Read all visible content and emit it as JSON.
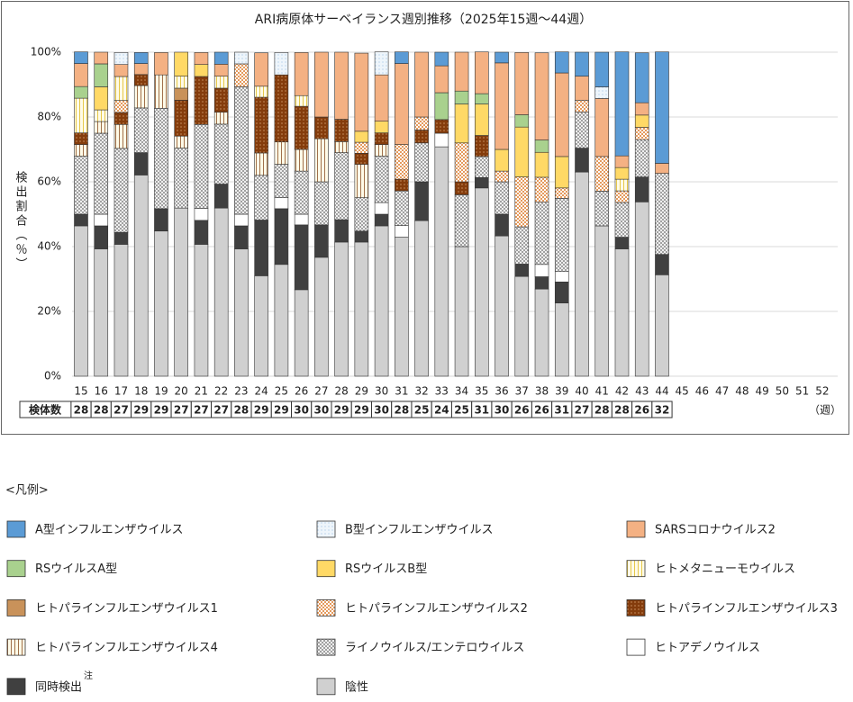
{
  "chart_data": {
    "type": "stacked_bar",
    "title": "ARI病原体サーベイランス週別推移（2025年15週～44週）",
    "y_label": "検出割合（％）",
    "x_unit": "（週）",
    "legend_title": "<凡例>",
    "note_mark": "注",
    "sample_count_label": "検体数",
    "categories": [
      "15",
      "16",
      "17",
      "18",
      "19",
      "20",
      "21",
      "22",
      "23",
      "24",
      "25",
      "26",
      "27",
      "28",
      "29",
      "30",
      "31",
      "32",
      "33",
      "34",
      "35",
      "36",
      "37",
      "38",
      "39",
      "40",
      "41",
      "42",
      "43",
      "44",
      "45",
      "46",
      "47",
      "48",
      "49",
      "50",
      "51",
      "52"
    ],
    "sample_counts": [
      28,
      28,
      27,
      29,
      29,
      27,
      27,
      27,
      28,
      29,
      29,
      30,
      30,
      29,
      29,
      30,
      28,
      25,
      24,
      25,
      31,
      30,
      26,
      26,
      31,
      27,
      28,
      28,
      26,
      32
    ],
    "ylim": [
      0,
      100
    ],
    "yticks": [
      {
        "value": 0,
        "label": "0%"
      },
      {
        "value": 20,
        "label": "20%"
      },
      {
        "value": 40,
        "label": "40%"
      },
      {
        "value": 60,
        "label": "60%"
      },
      {
        "value": 80,
        "label": "80%"
      },
      {
        "value": 100,
        "label": "100%"
      }
    ],
    "grid": true,
    "series": [
      {
        "name": "A型インフルエンザウイルス",
        "color": "#5b9bd5",
        "pattern": "solid",
        "values": [
          3.6,
          0,
          0,
          3.4,
          0,
          0,
          0,
          3.7,
          0,
          0,
          0,
          0,
          0,
          0,
          0,
          0,
          3.6,
          0,
          4.2,
          0,
          0,
          3.3,
          0,
          0,
          6.5,
          7.4,
          10.7,
          32.1,
          15.4,
          34.4,
          null,
          null,
          null,
          null,
          null,
          null,
          null,
          null
        ]
      },
      {
        "name": "B型インフルエンザウイルス",
        "color": "#9dc3e6",
        "pattern": "dots",
        "values": [
          0,
          0,
          3.7,
          0,
          0,
          0,
          0,
          0,
          3.6,
          0,
          6.9,
          0,
          0,
          0,
          0,
          7.1,
          0,
          0,
          0,
          0,
          0,
          0,
          0,
          0,
          0,
          0,
          3.6,
          0,
          0,
          0,
          null,
          null,
          null,
          null,
          null,
          null,
          null,
          null
        ]
      },
      {
        "name": "SARSコロナウイルス2",
        "color": "#f4b183",
        "pattern": "solid",
        "values": [
          7.1,
          3.6,
          3.7,
          3.4,
          6.9,
          0,
          3.7,
          3.7,
          0,
          10.3,
          0,
          13.3,
          20,
          20.7,
          24.1,
          14.3,
          25,
          20,
          8.3,
          12,
          12.9,
          26.7,
          19.2,
          26.9,
          25.8,
          7.4,
          17.9,
          3.6,
          3.8,
          3.1,
          null,
          null,
          null,
          null,
          null,
          null,
          null,
          null
        ]
      },
      {
        "name": "RSウイルスA型",
        "color": "#a9d18e",
        "pattern": "solid",
        "values": [
          3.6,
          7.1,
          0,
          0,
          0,
          0,
          0,
          0,
          0,
          0,
          0,
          0,
          0,
          0,
          0,
          0,
          0,
          0,
          8.3,
          4,
          3.2,
          0,
          3.8,
          3.8,
          0,
          0,
          0,
          0,
          0,
          0,
          null,
          null,
          null,
          null,
          null,
          null,
          null,
          null
        ]
      },
      {
        "name": "RSウイルスB型",
        "color": "#ffd966",
        "pattern": "solid",
        "values": [
          0,
          7.1,
          0,
          0,
          0,
          7.4,
          3.7,
          0,
          0,
          0,
          0,
          0,
          0,
          0,
          3.4,
          3.6,
          0,
          0,
          0,
          12,
          9.7,
          6.7,
          15.4,
          7.7,
          9.7,
          0,
          0,
          3.6,
          3.8,
          0,
          null,
          null,
          null,
          null,
          null,
          null,
          null,
          null
        ]
      },
      {
        "name": "ヒトメタニューモウイルス",
        "color": "#e6c84a",
        "pattern": "vlines",
        "values": [
          10.7,
          3.6,
          7.4,
          0,
          0,
          3.7,
          0,
          3.7,
          0,
          3.4,
          0,
          3.3,
          0,
          0,
          0,
          0,
          0,
          0,
          0,
          0,
          0,
          0,
          0,
          0,
          0,
          0,
          0,
          3.6,
          0,
          0,
          null,
          null,
          null,
          null,
          null,
          null,
          null,
          null
        ]
      },
      {
        "name": "ヒトパラインフルエンザウイルス1",
        "color": "#c9925a",
        "pattern": "solid",
        "values": [
          0,
          0,
          0,
          0,
          0,
          3.7,
          0,
          0,
          0,
          0,
          0,
          0,
          0,
          0,
          0,
          0,
          0,
          0,
          0,
          0,
          0,
          0,
          0,
          0,
          0,
          0,
          0,
          0,
          0,
          0,
          null,
          null,
          null,
          null,
          null,
          null,
          null,
          null
        ]
      },
      {
        "name": "ヒトパラインフルエンザウイルス2",
        "color": "#e59a5c",
        "pattern": "checker",
        "values": [
          0,
          0,
          3.7,
          0,
          0,
          0,
          0,
          0,
          7.1,
          0,
          0,
          0,
          0,
          0,
          3.4,
          0,
          10.7,
          4,
          0,
          12,
          0,
          3.3,
          15.4,
          7.7,
          3.2,
          3.7,
          10.7,
          3.6,
          3.8,
          0,
          null,
          null,
          null,
          null,
          null,
          null,
          null,
          null
        ]
      },
      {
        "name": "ヒトパラインフルエンザウイルス3",
        "color": "#843c0c",
        "pattern": "darkdots",
        "values": [
          3.6,
          0,
          3.7,
          3.4,
          0,
          11.1,
          14.8,
          7.4,
          0,
          17.2,
          20.7,
          13.3,
          6.7,
          6.9,
          3.4,
          3.6,
          3.6,
          4,
          4.2,
          4,
          6.5,
          0,
          0,
          0,
          0,
          0,
          0,
          0,
          0,
          0,
          null,
          null,
          null,
          null,
          null,
          null,
          null,
          null
        ]
      },
      {
        "name": "ヒトパラインフルエンザウイルス4",
        "color": "#a0704a",
        "pattern": "vlines",
        "values": [
          3.6,
          3.6,
          7.4,
          6.9,
          10.3,
          3.7,
          0,
          3.7,
          0,
          6.9,
          6.9,
          6.7,
          13.3,
          3.4,
          10.3,
          3.6,
          0,
          0,
          0,
          0,
          0,
          0,
          0,
          0,
          0,
          0,
          0,
          0,
          0,
          0,
          null,
          null,
          null,
          null,
          null,
          null,
          null,
          null
        ]
      },
      {
        "name": "ライノウイルス/エンテロウイルス",
        "color": "#808080",
        "pattern": "crosshatch",
        "values": [
          17.9,
          25,
          25.9,
          13.8,
          31,
          18.5,
          25.9,
          18.5,
          39.3,
          13.8,
          10.3,
          13.3,
          13.3,
          20.7,
          10.3,
          14.3,
          10.7,
          12,
          0,
          16,
          6.5,
          10,
          11.5,
          19.2,
          22.6,
          11.1,
          10.7,
          10.7,
          11.5,
          25,
          null,
          null,
          null,
          null,
          null,
          null,
          null,
          null
        ]
      },
      {
        "name": "ヒトアデノウイルス",
        "color": "#ffffff",
        "pattern": "solid",
        "values": [
          0,
          3.6,
          0,
          0,
          0,
          0,
          3.7,
          0,
          3.6,
          0,
          3.4,
          3.3,
          0,
          0,
          0,
          3.6,
          3.6,
          0,
          4.2,
          0,
          0,
          0,
          0,
          3.8,
          3.2,
          0,
          0,
          0,
          0,
          0,
          null,
          null,
          null,
          null,
          null,
          null,
          null,
          null
        ]
      },
      {
        "name": "同時検出",
        "color": "#404040",
        "pattern": "solid",
        "values": [
          3.6,
          7.1,
          3.7,
          6.9,
          6.9,
          0,
          7.4,
          7.4,
          7.1,
          17.2,
          17.2,
          20,
          10,
          6.9,
          3.4,
          3.6,
          0,
          12,
          0,
          0,
          3.2,
          6.7,
          3.8,
          3.8,
          6.5,
          7.4,
          0,
          3.6,
          7.7,
          6.3,
          null,
          null,
          null,
          null,
          null,
          null,
          null,
          null
        ]
      },
      {
        "name": "陰性",
        "color": "#d0d0d0",
        "pattern": "solid",
        "values": [
          46.4,
          39.3,
          40.7,
          62.1,
          44.8,
          51.9,
          40.7,
          51.9,
          39.3,
          31,
          34.5,
          26.7,
          36.7,
          41.4,
          41.4,
          46.4,
          42.9,
          48,
          70.8,
          40,
          58.1,
          43.3,
          30.8,
          26.9,
          22.6,
          63,
          46.4,
          39.3,
          53.8,
          31.3,
          null,
          null,
          null,
          null,
          null,
          null,
          null,
          null
        ]
      }
    ]
  }
}
